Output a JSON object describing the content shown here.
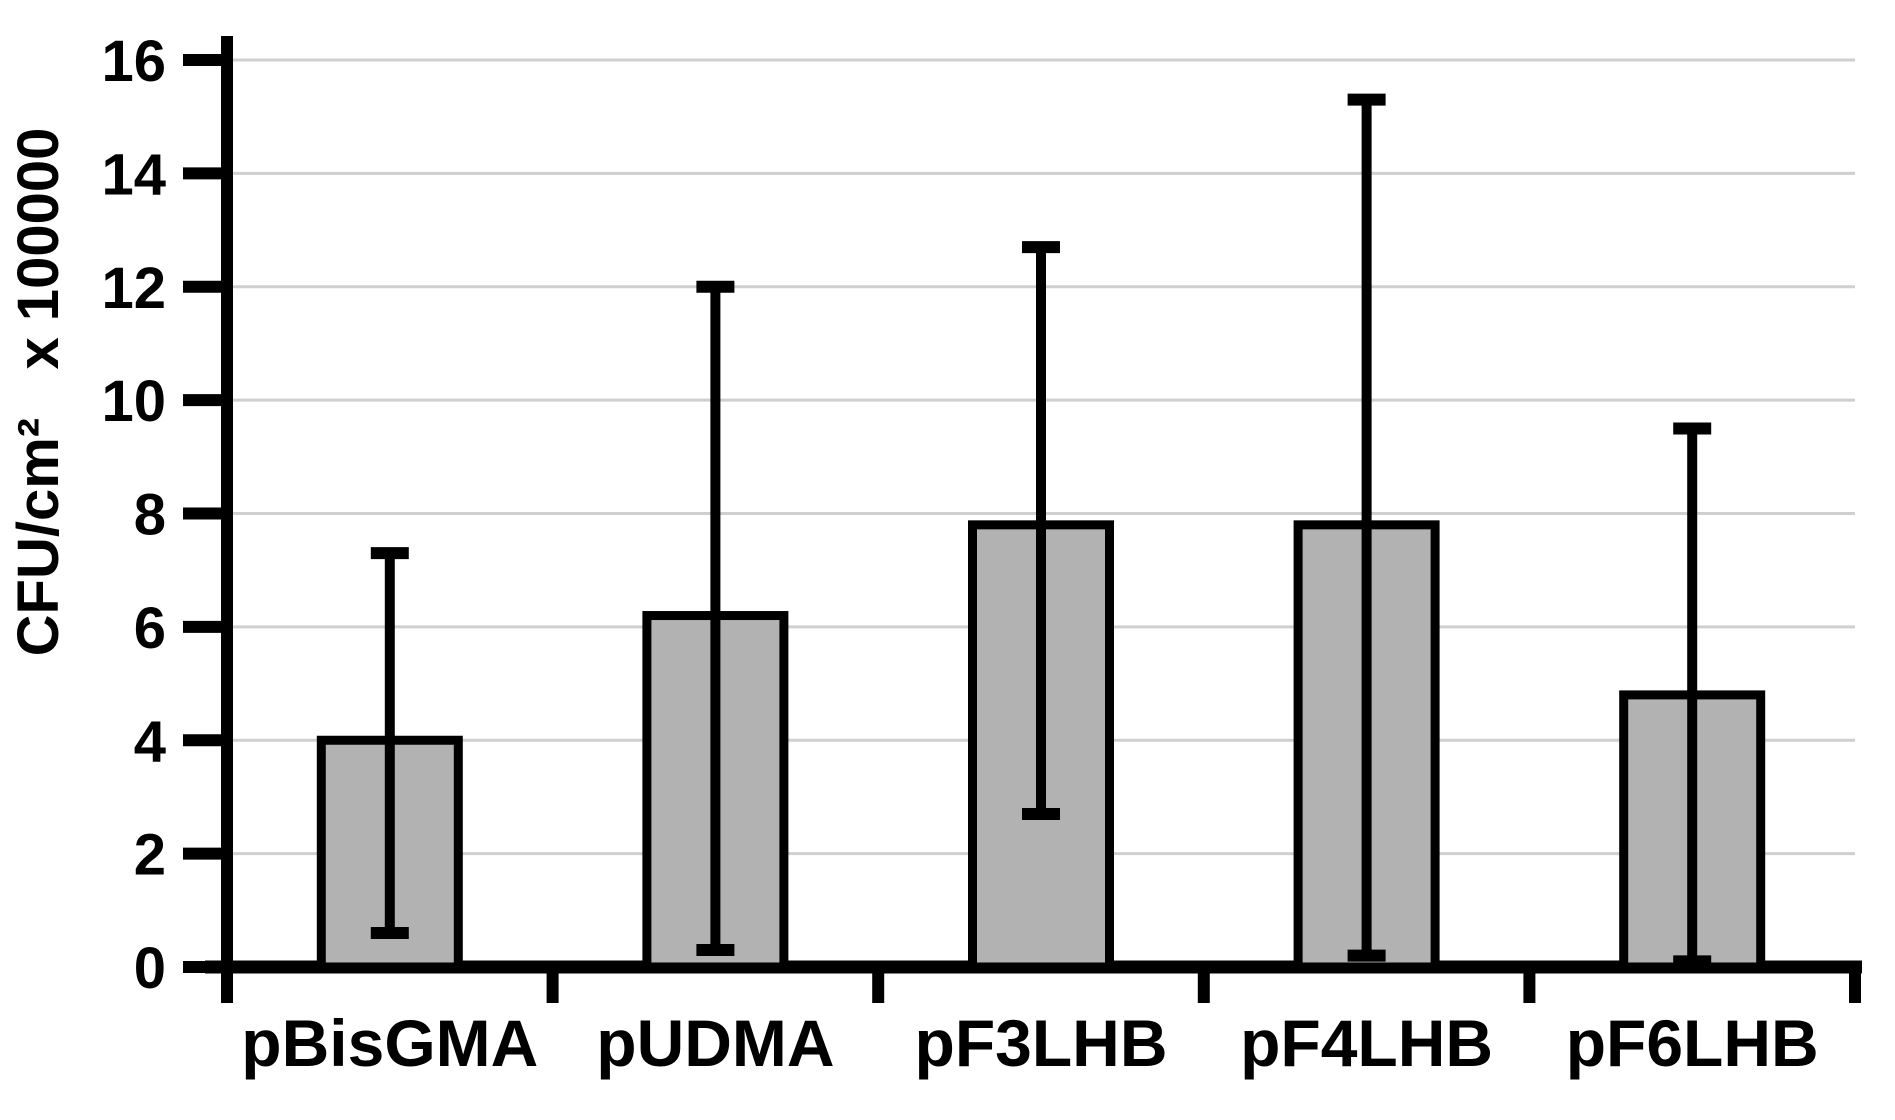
{
  "chart_data": {
    "type": "bar",
    "title": "",
    "categories": [
      "pBisGMA",
      "pUDMA",
      "pF3LHB",
      "pF4LHB",
      "pF6LHB"
    ],
    "values": [
      4.0,
      6.2,
      7.8,
      7.8,
      4.8
    ],
    "error_high": [
      7.3,
      12.0,
      12.7,
      15.3,
      9.5
    ],
    "error_low": [
      0.6,
      0.3,
      2.7,
      0.2,
      0.1
    ],
    "error_bars": "absolute min/max whisker values on y scale",
    "xlabel": "",
    "ylabel": "CFU/cm²   x 100000",
    "ylim": [
      0,
      16
    ],
    "ytick_step": 2,
    "ytick_labels": [
      "0",
      "2",
      "4",
      "6",
      "8",
      "10",
      "12",
      "14",
      "16"
    ],
    "grid": true,
    "legend": false,
    "colors": {
      "bar_fill": "#b2b2b2",
      "bar_stroke": "#000000",
      "axis": "#000000",
      "grid_color": "#cfcfcf",
      "background": "#ffffff",
      "text": "#000000"
    }
  }
}
